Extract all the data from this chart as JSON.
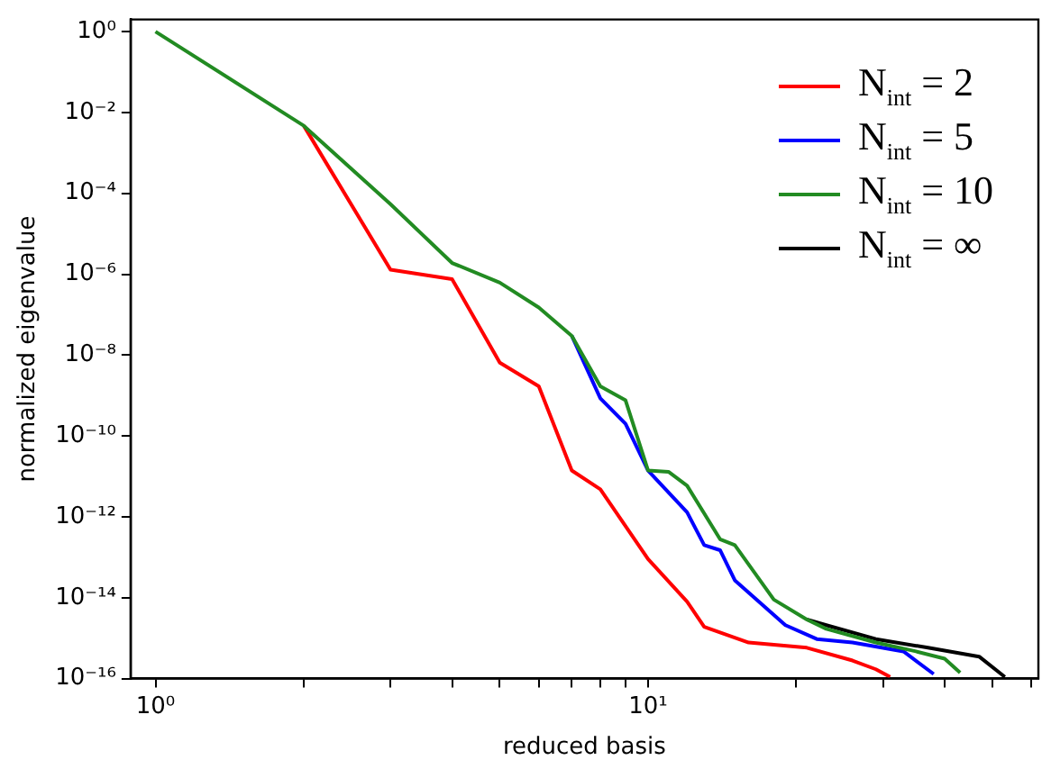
{
  "chart_data": {
    "type": "line",
    "xlabel": "reduced basis",
    "ylabel": "normalized eigenvalue",
    "log": "xy",
    "grid": false,
    "legend": "top right",
    "marker": "none",
    "line_style": "solid",
    "xlim": [
      0.89,
      62
    ],
    "ylim": [
      1e-16,
      2
    ],
    "xticks": [
      {
        "value": 1,
        "label": "10⁰"
      },
      {
        "value": 2,
        "label": null
      },
      {
        "value": 3,
        "label": null
      },
      {
        "value": 4,
        "label": null
      },
      {
        "value": 5,
        "label": null
      },
      {
        "value": 6,
        "label": null
      },
      {
        "value": 7,
        "label": null
      },
      {
        "value": 8,
        "label": null
      },
      {
        "value": 9,
        "label": null
      },
      {
        "value": 10,
        "label": "10¹"
      },
      {
        "value": 20,
        "label": null
      },
      {
        "value": 30,
        "label": null
      },
      {
        "value": 40,
        "label": null
      },
      {
        "value": 50,
        "label": null
      },
      {
        "value": 60,
        "label": null
      }
    ],
    "yticks": [
      {
        "value": 1,
        "label": "10⁰"
      },
      {
        "value": 0.01,
        "label": "10⁻²"
      },
      {
        "value": 0.0001,
        "label": "10⁻⁴"
      },
      {
        "value": 1e-06,
        "label": "10⁻⁶"
      },
      {
        "value": 1e-08,
        "label": "10⁻⁸"
      },
      {
        "value": 1e-10,
        "label": "10⁻¹⁰"
      },
      {
        "value": 1e-12,
        "label": "10⁻¹²"
      },
      {
        "value": 1e-14,
        "label": "10⁻¹⁴"
      },
      {
        "value": 1e-16,
        "label": "10⁻¹⁶"
      }
    ],
    "series": [
      {
        "name": "N$_{int}$ = 2",
        "color": "#ff0000",
        "x": [
          2,
          3,
          4,
          5,
          6,
          7,
          8,
          10,
          12,
          13,
          16,
          21,
          26,
          29,
          31
        ],
        "values": [
          0.0047,
          1.3e-06,
          7.6e-07,
          6.5e-09,
          1.7e-09,
          1.4e-11,
          4.8e-12,
          9e-14,
          8e-15,
          1.9e-15,
          7.8e-16,
          5.8e-16,
          2.8e-16,
          1.7e-16,
          1.1e-16
        ]
      },
      {
        "name": "N$_{int}$ = 5",
        "color": "#0000ff",
        "x": [
          7,
          8,
          9,
          10,
          12,
          13,
          14,
          15,
          19,
          22,
          26,
          33,
          38
        ],
        "values": [
          3e-08,
          8.5e-10,
          2e-10,
          1.4e-11,
          1.3e-12,
          2e-13,
          1.5e-13,
          2.7e-14,
          2.1e-15,
          9.5e-16,
          7.8e-16,
          4.7e-16,
          1.3e-16
        ]
      },
      {
        "name": "N$_{int}$ = 10",
        "color": "#228b22",
        "x": [
          1,
          2,
          3,
          4,
          5,
          6,
          7,
          8,
          9,
          10,
          11,
          12,
          14,
          15,
          18,
          21,
          23,
          29,
          35,
          40,
          43
        ],
        "values": [
          1,
          0.0047,
          5.4e-05,
          1.9e-06,
          6.2e-07,
          1.5e-07,
          3e-08,
          1.7e-09,
          7.6e-10,
          1.4e-11,
          1.3e-11,
          5.9e-12,
          2.8e-13,
          2e-13,
          9e-15,
          2.9e-15,
          1.7e-15,
          7.8e-16,
          4.7e-16,
          3.1e-16,
          1.4e-16
        ]
      },
      {
        "name": "N$_{int}$ = ∞",
        "color": "#000000",
        "x": [
          21,
          23,
          29,
          37,
          47,
          53
        ],
        "values": [
          2.9e-15,
          2.1e-15,
          9.5e-16,
          5.8e-16,
          3.5e-16,
          1.1e-16
        ]
      }
    ]
  }
}
